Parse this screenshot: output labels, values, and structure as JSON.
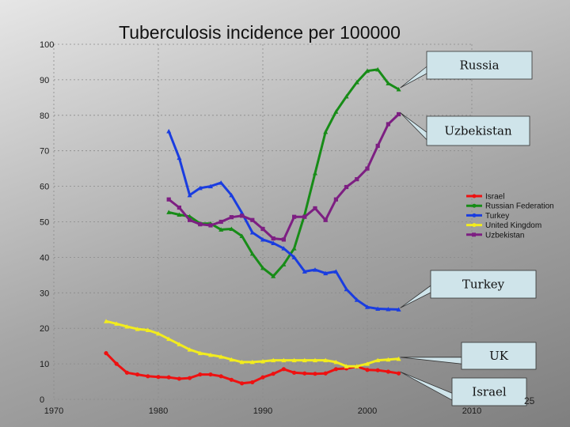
{
  "chart_data": {
    "type": "line",
    "title": "Tuberculosis incidence per 100000",
    "xlabel": "",
    "ylabel": "",
    "xlim": [
      1970,
      2010
    ],
    "ylim": [
      0,
      100
    ],
    "x_ticks": [
      "1970",
      "1980",
      "1990",
      "2000",
      "2010"
    ],
    "y_ticks": [
      "0",
      "10",
      "20",
      "30",
      "40",
      "50",
      "60",
      "70",
      "80",
      "90",
      "100"
    ],
    "grid": true,
    "legend_position": "right",
    "series": [
      {
        "name": "Israel",
        "color": "#ee1111",
        "marker": "circle",
        "x": [
          1975,
          1976,
          1977,
          1978,
          1979,
          1980,
          1981,
          1982,
          1983,
          1984,
          1985,
          1986,
          1987,
          1988,
          1989,
          1990,
          1991,
          1992,
          1993,
          1994,
          1995,
          1996,
          1997,
          1998,
          1999,
          2000,
          2001,
          2002,
          2003
        ],
        "y": [
          13,
          10,
          7.5,
          7,
          6.5,
          6.3,
          6.2,
          5.8,
          6,
          7,
          7,
          6.5,
          5.5,
          4.5,
          4.8,
          6.2,
          7.2,
          8.5,
          7.5,
          7.3,
          7.2,
          7.3,
          8.5,
          8.7,
          9.2,
          8.3,
          8.2,
          7.8,
          7.3
        ]
      },
      {
        "name": "Russian Federation",
        "color": "#178c17",
        "marker": "triangle",
        "x": [
          1981,
          1982,
          1983,
          1984,
          1985,
          1986,
          1987,
          1988,
          1989,
          1990,
          1991,
          1992,
          1993,
          1994,
          1995,
          1996,
          1997,
          1998,
          1999,
          2000,
          2001,
          2002,
          2003
        ],
        "y": [
          52.7,
          52,
          51.5,
          49.5,
          49.5,
          47.8,
          48,
          46,
          41,
          37,
          34.7,
          38,
          42.5,
          52,
          63.7,
          75.3,
          81,
          85.3,
          89.3,
          92.5,
          92.9,
          89,
          87.3
        ]
      },
      {
        "name": "Turkey",
        "color": "#1a3de0",
        "marker": "triangle",
        "x": [
          1981,
          1982,
          1983,
          1984,
          1985,
          1986,
          1987,
          1988,
          1989,
          1990,
          1991,
          1992,
          1993,
          1994,
          1995,
          1996,
          1997,
          1998,
          1999,
          2000,
          2001,
          2002,
          2003
        ],
        "y": [
          75.5,
          68,
          57.5,
          59.5,
          60,
          61,
          57.5,
          52.5,
          47,
          45,
          44,
          42.5,
          40,
          36,
          36.5,
          35.5,
          36,
          31,
          28,
          26,
          25.5,
          25.4,
          25.3
        ]
      },
      {
        "name": "United Kingdom",
        "color": "#f2ec1e",
        "marker": "triangle",
        "x": [
          1975,
          1976,
          1977,
          1978,
          1979,
          1980,
          1981,
          1982,
          1983,
          1984,
          1985,
          1986,
          1987,
          1988,
          1989,
          1990,
          1991,
          1992,
          1993,
          1994,
          1995,
          1996,
          1997,
          1998,
          1999,
          2000,
          2001,
          2002,
          2003
        ],
        "y": [
          22,
          21.3,
          20.5,
          19.8,
          19.5,
          18.5,
          17,
          15.5,
          14,
          13,
          12.5,
          12,
          11.2,
          10.5,
          10.5,
          10.7,
          11,
          11,
          11,
          11,
          11,
          11,
          10.5,
          9.3,
          9.3,
          10,
          11,
          11.2,
          11.4
        ]
      },
      {
        "name": "Uzbekistan",
        "color": "#7d1f82",
        "marker": "square",
        "x": [
          1981,
          1982,
          1983,
          1984,
          1985,
          1986,
          1987,
          1988,
          1989,
          1990,
          1991,
          1992,
          1993,
          1994,
          1995,
          1996,
          1997,
          1998,
          1999,
          2000,
          2001,
          2002,
          2003
        ],
        "y": [
          56.3,
          54,
          50.5,
          49.3,
          49,
          50,
          51.3,
          51.7,
          50.5,
          48,
          45.3,
          45,
          51.4,
          51.4,
          53.8,
          50.5,
          56.3,
          59.8,
          62,
          65,
          71.4,
          77.5,
          80.3
        ]
      }
    ],
    "annotations": [
      {
        "label": "Russia",
        "series": "Russian Federation"
      },
      {
        "label": "Uzbekistan",
        "series": "Uzbekistan"
      },
      {
        "label": "Turkey",
        "series": "Turkey"
      },
      {
        "label": "UK",
        "series": "United Kingdom"
      },
      {
        "label": "Israel",
        "series": "Israel"
      }
    ]
  },
  "page_number": "25"
}
